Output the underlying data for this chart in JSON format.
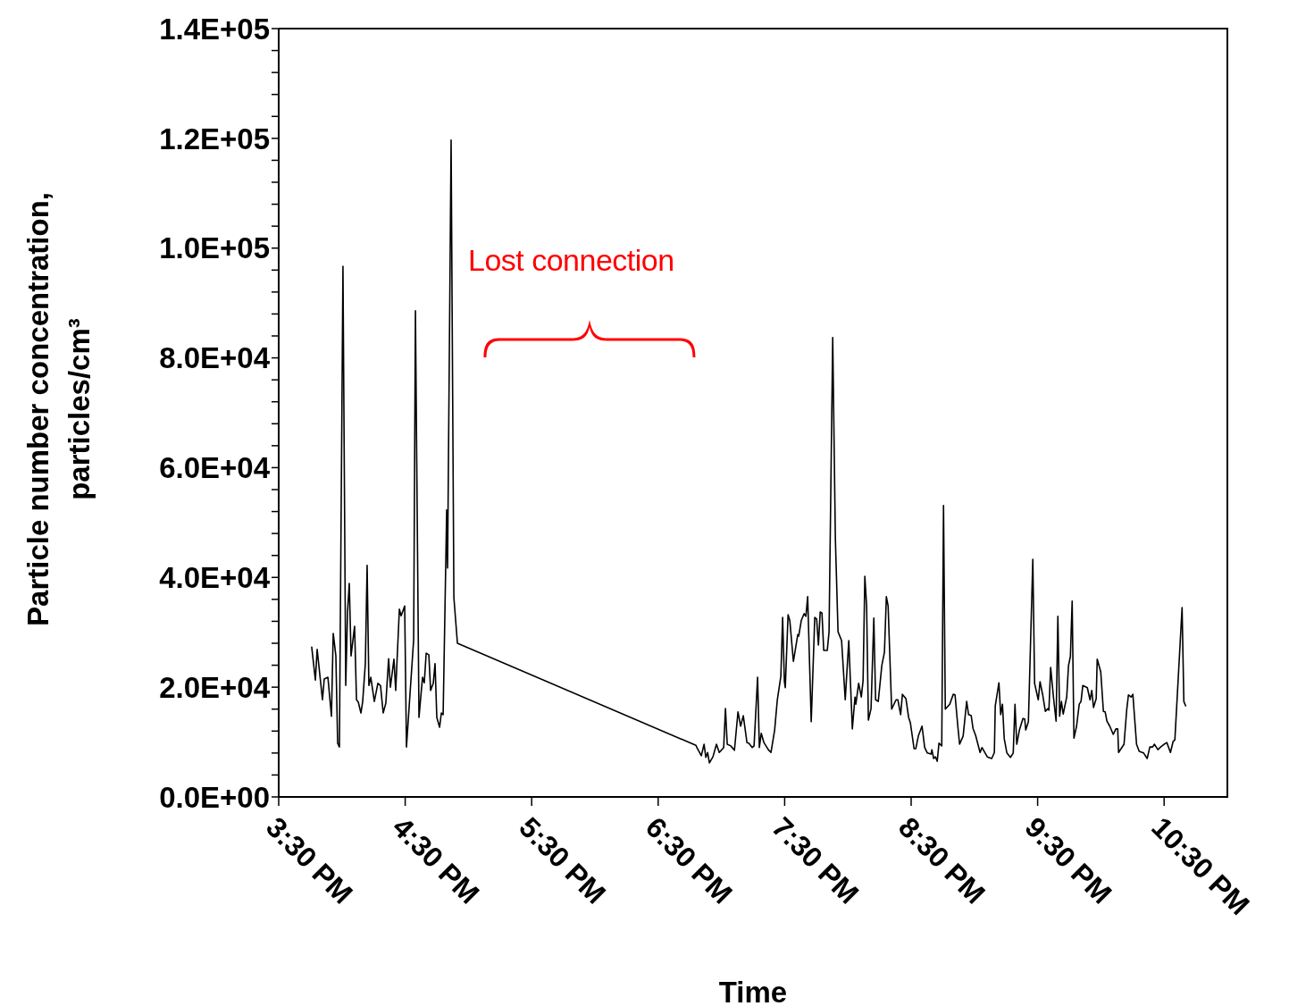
{
  "chart_data": {
    "type": "line",
    "xlabel": "Time",
    "ylabel": "Particle number concentration, particles/cm³",
    "annotations": [
      "Lost connection"
    ],
    "color": "#000000",
    "xlim": [
      15.5,
      23.0
    ],
    "xticks": [
      {
        "value": 15.5,
        "label": "3:30 PM"
      },
      {
        "value": 16.5,
        "label": "4:30 PM"
      },
      {
        "value": 17.5,
        "label": "5:30 PM"
      },
      {
        "value": 18.5,
        "label": "6:30 PM"
      },
      {
        "value": 19.5,
        "label": "7:30 PM"
      },
      {
        "value": 20.5,
        "label": "8:30 PM"
      },
      {
        "value": 21.5,
        "label": "9:30 PM"
      },
      {
        "value": 22.5,
        "label": "10:30 PM"
      }
    ],
    "ylim": [
      0,
      140000
    ],
    "yticks": [
      {
        "value": 0,
        "label": "0.0E+00"
      },
      {
        "value": 4000,
        "label": null
      },
      {
        "value": 8000,
        "label": null
      },
      {
        "value": 12000,
        "label": null
      },
      {
        "value": 16000,
        "label": null
      },
      {
        "value": 20000,
        "label": "2.0E+04"
      },
      {
        "value": 24000,
        "label": null
      },
      {
        "value": 28000,
        "label": null
      },
      {
        "value": 32000,
        "label": null
      },
      {
        "value": 36000,
        "label": null
      },
      {
        "value": 40000,
        "label": "4.0E+04"
      },
      {
        "value": 44000,
        "label": null
      },
      {
        "value": 48000,
        "label": null
      },
      {
        "value": 52000,
        "label": null
      },
      {
        "value": 56000,
        "label": null
      },
      {
        "value": 60000,
        "label": "6.0E+04"
      },
      {
        "value": 64000,
        "label": null
      },
      {
        "value": 68000,
        "label": null
      },
      {
        "value": 72000,
        "label": null
      },
      {
        "value": 76000,
        "label": null
      },
      {
        "value": 80000,
        "label": "8.0E+04"
      },
      {
        "value": 84000,
        "label": null
      },
      {
        "value": 88000,
        "label": null
      },
      {
        "value": 92000,
        "label": null
      },
      {
        "value": 96000,
        "label": null
      },
      {
        "value": 100000,
        "label": "1.0E+05"
      },
      {
        "value": 104000,
        "label": null
      },
      {
        "value": 108000,
        "label": null
      },
      {
        "value": 112000,
        "label": null
      },
      {
        "value": 116000,
        "label": null
      },
      {
        "value": 120000,
        "label": "1.2E+05"
      },
      {
        "value": 124000,
        "label": null
      },
      {
        "value": 128000,
        "label": null
      },
      {
        "value": 132000,
        "label": null
      },
      {
        "value": 136000,
        "label": null
      },
      {
        "value": 140000,
        "label": "1.4E+05"
      }
    ],
    "x": [
      15.761,
      15.79,
      15.804,
      15.846,
      15.86,
      15.889,
      15.917,
      15.931,
      15.952,
      15.966,
      15.98,
      16.008,
      16.03,
      16.044,
      16.058,
      16.072,
      16.1,
      16.115,
      16.129,
      16.15,
      16.164,
      16.185,
      16.199,
      16.213,
      16.228,
      16.256,
      16.284,
      16.305,
      16.326,
      16.347,
      16.369,
      16.383,
      16.411,
      16.425,
      16.454,
      16.468,
      16.496,
      16.51,
      16.567,
      16.581,
      16.609,
      16.637,
      16.651,
      16.666,
      16.687,
      16.701,
      16.722,
      16.736,
      16.75,
      16.772,
      16.786,
      16.8,
      16.828,
      16.835,
      16.863,
      16.885,
      16.913,
      18.799,
      18.806,
      18.841,
      18.863,
      18.877,
      18.891,
      18.905,
      18.933,
      18.961,
      18.983,
      19.018,
      19.032,
      19.046,
      19.074,
      19.103,
      19.131,
      19.152,
      19.173,
      19.202,
      19.216,
      19.244,
      19.258,
      19.286,
      19.3,
      19.315,
      19.336,
      19.371,
      19.392,
      19.421,
      19.442,
      19.47,
      19.484,
      19.498,
      19.505,
      19.527,
      19.541,
      19.569,
      19.604,
      19.611,
      19.632,
      19.654,
      19.668,
      19.682,
      19.71,
      19.738,
      19.753,
      19.767,
      19.781,
      19.795,
      19.809,
      19.837,
      19.851,
      19.88,
      19.901,
      19.922,
      19.95,
      19.979,
      20.007,
      20.035,
      20.056,
      20.063,
      20.085,
      20.106,
      20.12,
      20.134,
      20.148,
      20.162,
      20.183,
      20.205,
      20.219,
      20.24,
      20.268,
      20.289,
      20.304,
      20.318,
      20.346,
      20.381,
      20.395,
      20.417,
      20.431,
      20.459,
      20.48,
      20.494,
      20.523,
      20.537,
      20.558,
      20.586,
      20.607,
      20.628,
      20.657,
      20.664,
      20.678,
      20.692,
      20.706,
      20.72,
      20.742,
      20.756,
      20.77,
      20.805,
      20.833,
      20.847,
      20.869,
      20.883,
      20.911,
      20.939,
      20.954,
      20.975,
      20.989,
      21.01,
      21.045,
      21.06,
      21.102,
      21.137,
      21.158,
      21.165,
      21.194,
      21.208,
      21.222,
      21.236,
      21.257,
      21.285,
      21.307,
      21.321,
      21.335,
      21.356,
      21.384,
      21.398,
      21.406,
      21.427,
      21.462,
      21.476,
      21.505,
      21.519,
      21.54,
      21.561,
      21.582,
      21.589,
      21.603,
      21.625,
      21.646,
      21.66,
      21.674,
      21.688,
      21.702,
      21.73,
      21.744,
      21.759,
      21.773,
      21.787,
      21.808,
      21.829,
      21.843,
      21.857,
      21.893,
      21.914,
      21.928,
      21.942,
      21.963,
      21.971,
      21.999,
      22.02,
      22.034,
      22.048,
      22.07,
      22.098,
      22.119,
      22.133,
      22.14,
      22.183,
      22.204,
      22.218,
      22.239,
      22.253,
      22.282,
      22.303,
      22.338,
      22.366,
      22.387,
      22.409,
      22.423,
      22.451,
      22.472,
      22.5,
      22.522,
      22.55,
      22.571,
      22.585,
      22.642,
      22.656,
      22.67
    ],
    "values": [
      27300,
      21300,
      26900,
      17700,
      21500,
      21800,
      14700,
      29800,
      25700,
      9800,
      9100,
      96700,
      20300,
      33700,
      38900,
      25700,
      31100,
      17700,
      17300,
      15300,
      17400,
      24300,
      42200,
      20300,
      21800,
      17400,
      20700,
      20300,
      15300,
      17100,
      25200,
      20000,
      25100,
      19400,
      34200,
      33000,
      34800,
      9100,
      28700,
      88600,
      14500,
      21800,
      20800,
      26200,
      25900,
      19400,
      20700,
      24300,
      14500,
      12700,
      15300,
      15000,
      52300,
      41700,
      119700,
      36300,
      28000,
      9400,
      9000,
      7500,
      9600,
      7200,
      8100,
      6200,
      7300,
      9600,
      8100,
      9000,
      16100,
      9600,
      9300,
      8500,
      15500,
      12900,
      14800,
      9900,
      9800,
      9000,
      9300,
      21800,
      9000,
      11600,
      9900,
      8600,
      8100,
      12200,
      17700,
      22000,
      32700,
      21000,
      19900,
      33200,
      32100,
      24700,
      29600,
      29300,
      32200,
      33400,
      32900,
      36500,
      13700,
      32700,
      32400,
      27700,
      33700,
      33500,
      26700,
      26700,
      30100,
      83700,
      47000,
      30100,
      28500,
      17700,
      28500,
      12400,
      18200,
      16900,
      20700,
      18200,
      21200,
      40200,
      34800,
      14000,
      16100,
      32600,
      17700,
      17400,
      23900,
      26400,
      36500,
      34800,
      16000,
      17700,
      17700,
      15000,
      18700,
      17900,
      14500,
      13500,
      8800,
      8800,
      11200,
      12900,
      9000,
      8000,
      7800,
      8600,
      7000,
      7300,
      6500,
      9800,
      9300,
      53100,
      16000,
      16900,
      18700,
      18600,
      12900,
      9600,
      11100,
      17400,
      15000,
      14800,
      12500,
      11200,
      8100,
      9000,
      7300,
      7000,
      8100,
      16600,
      20800,
      15000,
      16900,
      10600,
      8000,
      7200,
      8000,
      16900,
      9600,
      12200,
      14300,
      14200,
      12200,
      13700,
      43300,
      20700,
      17700,
      21000,
      18600,
      15600,
      16100,
      15800,
      23600,
      18200,
      13800,
      32900,
      14700,
      17400,
      15100,
      18200,
      23900,
      25600,
      35700,
      10700,
      12900,
      16900,
      17400,
      20300,
      19900,
      17700,
      19400,
      16300,
      17900,
      25100,
      22800,
      15600,
      15500,
      13800,
      12900,
      11400,
      12400,
      12400,
      8100,
      9600,
      15800,
      18600,
      18200,
      18700,
      9600,
      8300,
      8000,
      7000,
      9100,
      9100,
      9600,
      8600,
      9100,
      9600,
      9900,
      8100,
      10100,
      10400,
      34500,
      17400,
      16600
    ]
  }
}
